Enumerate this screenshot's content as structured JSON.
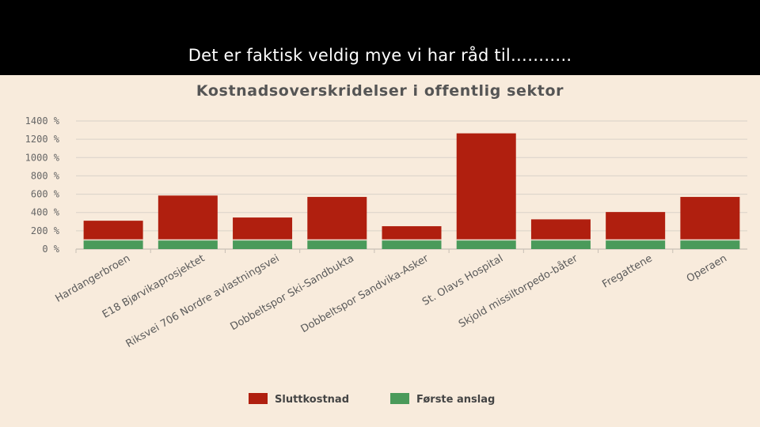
{
  "slide": {
    "title": "Det er faktisk veldig mye vi har råd til……….."
  },
  "chart_data": {
    "type": "bar",
    "title": "Kostnadsoverskridelser i offentlig sektor",
    "xlabel": "",
    "ylabel": "",
    "ylim": [
      0,
      1400
    ],
    "yticks": [
      "0 %",
      "200 %",
      "400 %",
      "600 %",
      "800 %",
      "1000 %",
      "1200 %",
      "1400 %"
    ],
    "grid": true,
    "legend_position": "bottom",
    "categories": [
      "Hardangerbroen",
      "E18 Bjørvikaprosjektet",
      "Riksvei 706 Nordre avlastningsvei",
      "Dobbeltspor Ski-Sandbukta",
      "Dobbeltspor Sandvika-Asker",
      "St. Olavs Hospital",
      "Skjold missiltorpedo-båter",
      "Fregattene",
      "Operaen"
    ],
    "series": [
      {
        "name": "Sluttkostnad",
        "color": "#b01f0f",
        "values": [
          310,
          585,
          345,
          570,
          250,
          1265,
          325,
          405,
          570
        ]
      },
      {
        "name": "Første anslag",
        "color": "#4a9a5a",
        "values": [
          100,
          100,
          100,
          100,
          100,
          100,
          100,
          100,
          100
        ]
      }
    ]
  }
}
